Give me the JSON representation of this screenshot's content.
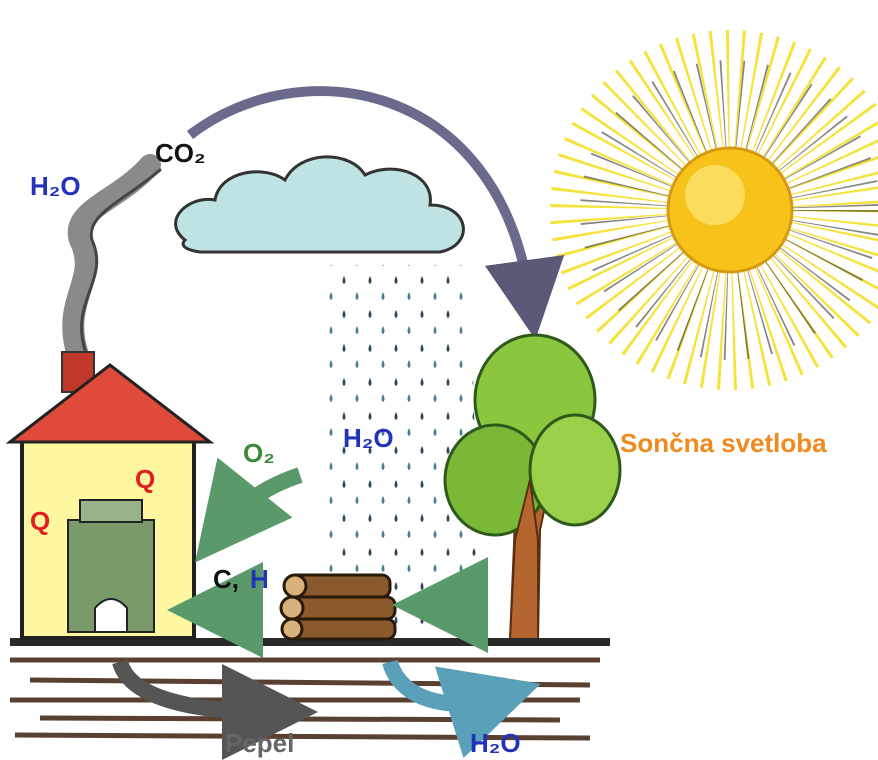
{
  "labels": {
    "smoke_water": "H₂O",
    "smoke_co2": "CO₂",
    "rain_water": "H₂O",
    "oxygen": "O₂",
    "heat_right": "Q",
    "heat_left": "Q",
    "carbon": "C,",
    "hydrogen": "H",
    "sunlight": "Sončna svetloba",
    "ash": "Pepel",
    "ground_water": "H₂O"
  }
}
